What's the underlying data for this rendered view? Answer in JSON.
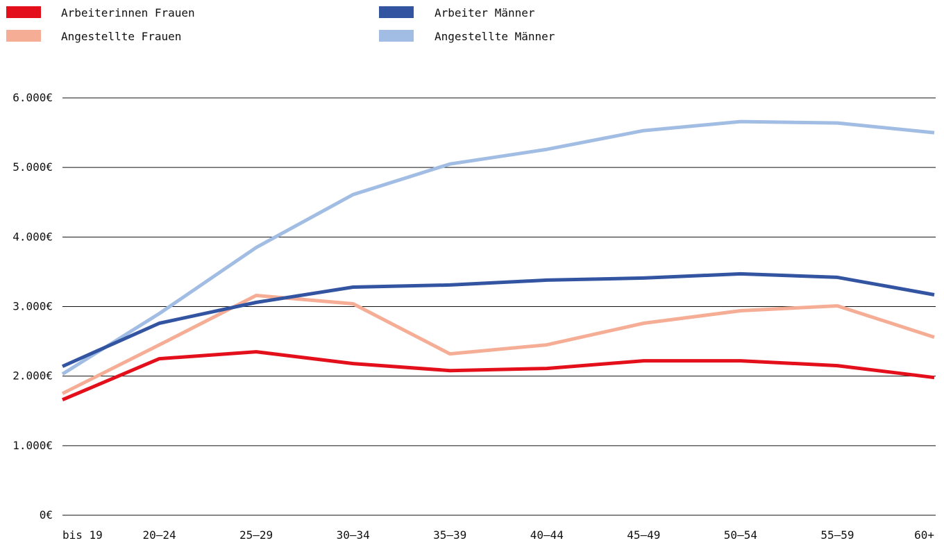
{
  "chart_data": {
    "type": "line",
    "categories": [
      "bis 19",
      "20–24",
      "25–29",
      "30–34",
      "35–39",
      "40–44",
      "45–49",
      "50–54",
      "55–59",
      "60+"
    ],
    "series": [
      {
        "name": "Arbeiterinnen Frauen",
        "color": "#e3101b",
        "values": [
          1660,
          2250,
          2350,
          2180,
          2080,
          2110,
          2220,
          2220,
          2150,
          1980
        ]
      },
      {
        "name": "Arbeiter Männer",
        "color": "#3355a1",
        "values": [
          2140,
          2760,
          3060,
          3280,
          3310,
          3380,
          3410,
          3470,
          3420,
          3170
        ]
      },
      {
        "name": "Angestellte Frauen",
        "color": "#f5ae95",
        "values": [
          1750,
          2450,
          3160,
          3040,
          2320,
          2450,
          2760,
          2940,
          3010,
          2560
        ]
      },
      {
        "name": "Angestellte Männer",
        "color": "#a2bde3",
        "values": [
          2030,
          2900,
          3850,
          4610,
          5050,
          5260,
          5530,
          5660,
          5640,
          5500
        ]
      }
    ],
    "y_ticks": [
      0,
      1000,
      2000,
      3000,
      4000,
      5000,
      6000
    ],
    "y_tick_labels": [
      "0€",
      "1.000€",
      "2.000€",
      "3.000€",
      "4.000€",
      "5.000€",
      "6.000€"
    ],
    "ylim": [
      0,
      6000
    ],
    "grid": true,
    "legend_position": "top-left"
  }
}
